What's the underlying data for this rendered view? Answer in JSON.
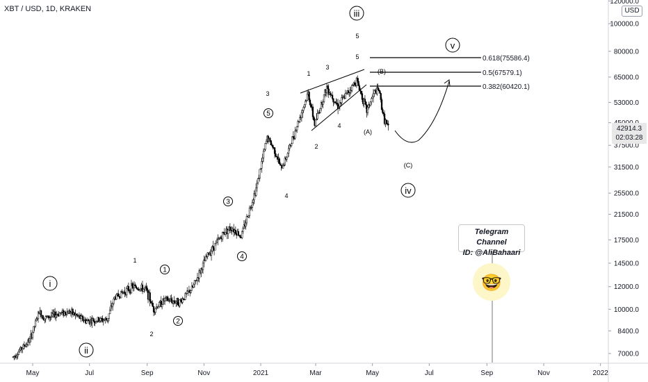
{
  "header": {
    "title": "XBT / USD, 1D, KRAKEN",
    "currency": "USD"
  },
  "price_tag": {
    "price": "42914.3",
    "countdown": "02:03:28"
  },
  "telegram": {
    "line1": "Telegram Channel",
    "line2": "ID: @AliBahaari",
    "emoji": "🤓"
  },
  "colors": {
    "candle": "#000000",
    "line": "#000000",
    "axis_text": "#131722",
    "emoji_glow": "#fdf6c8"
  },
  "chart_data": {
    "type": "candlestick",
    "scale": "log",
    "ylim": [
      6500,
      118000
    ],
    "y_ticks": [
      "7000.0",
      "8400.0",
      "10000.0",
      "12000.0",
      "14500.0",
      "17500.0",
      "21500.0",
      "25500.0",
      "31500.0",
      "37500.0",
      "45000.0",
      "53000.0",
      "65000.0",
      "80000.0",
      "100000.0",
      "120000.0"
    ],
    "x_ticks": [
      "May",
      "Jul",
      "Sep",
      "Nov",
      "2021",
      "Mar",
      "May",
      "Jul",
      "Sep",
      "Nov",
      "2022"
    ],
    "price_path": [
      [
        "2020-04-10",
        6800
      ],
      [
        "2020-04-28",
        7800
      ],
      [
        "2020-05-08",
        9800
      ],
      [
        "2020-05-14",
        9300
      ],
      [
        "2020-05-30",
        9700
      ],
      [
        "2020-06-10",
        9800
      ],
      [
        "2020-06-27",
        9100
      ],
      [
        "2020-07-20",
        9200
      ],
      [
        "2020-07-28",
        11000
      ],
      [
        "2020-08-17",
        12000
      ],
      [
        "2020-08-31",
        11700
      ],
      [
        "2020-09-08",
        10000
      ],
      [
        "2020-09-20",
        10800
      ],
      [
        "2020-10-06",
        10600
      ],
      [
        "2020-10-20",
        11900
      ],
      [
        "2020-11-05",
        15500
      ],
      [
        "2020-11-24",
        18800
      ],
      [
        "2020-12-01",
        19300
      ],
      [
        "2020-12-11",
        18000
      ],
      [
        "2020-12-27",
        26500
      ],
      [
        "2021-01-08",
        40000
      ],
      [
        "2021-01-16",
        36000
      ],
      [
        "2021-01-23",
        31000
      ],
      [
        "2021-01-29",
        34500
      ],
      [
        "2021-02-10",
        45000
      ],
      [
        "2021-02-21",
        57000
      ],
      [
        "2021-02-28",
        44500
      ],
      [
        "2021-03-13",
        60000
      ],
      [
        "2021-03-25",
        51500
      ],
      [
        "2021-04-14",
        63500
      ],
      [
        "2021-04-25",
        49500
      ],
      [
        "2021-05-03",
        57500
      ],
      [
        "2021-05-08",
        58500
      ],
      [
        "2021-05-13",
        47000
      ],
      [
        "2021-05-18",
        42900
      ]
    ],
    "fib_levels": [
      {
        "label": "0.618(75586.4)",
        "value": 75586.4
      },
      {
        "label": "0.5(67579.1)",
        "value": 67579.1
      },
      {
        "label": "0.382(60420.1)",
        "value": 60420.1
      }
    ],
    "annotations": [
      {
        "text": "i",
        "circled": true
      },
      {
        "text": "ii",
        "circled": true
      },
      {
        "text": "iii",
        "circled": true
      },
      {
        "text": "iv",
        "circled": true
      },
      {
        "text": "v",
        "circled": true
      },
      {
        "text": "1",
        "circled": true
      },
      {
        "text": "2",
        "circled": true
      },
      {
        "text": "3",
        "circled": true
      },
      {
        "text": "4",
        "circled": true
      },
      {
        "text": "5",
        "circled": true
      },
      {
        "text": "1"
      },
      {
        "text": "2"
      },
      {
        "text": "3"
      },
      {
        "text": "4"
      },
      {
        "text": "1"
      },
      {
        "text": "2"
      },
      {
        "text": "3"
      },
      {
        "text": "4"
      },
      {
        "text": "5"
      },
      {
        "text": "5"
      },
      {
        "text": "(A)"
      },
      {
        "text": "(B)"
      },
      {
        "text": "(C)"
      }
    ]
  }
}
